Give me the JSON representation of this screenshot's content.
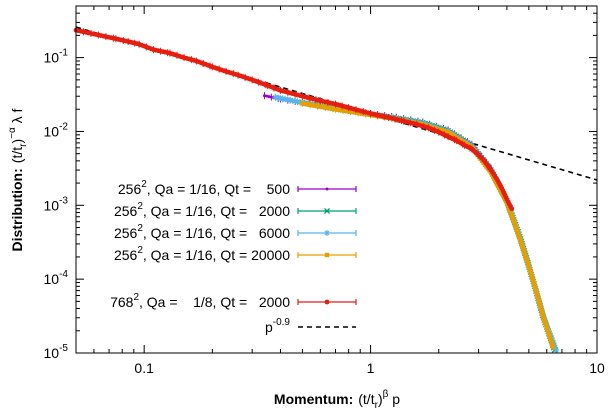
{
  "chart_data": {
    "type": "scatter",
    "title": "",
    "xlabel": {
      "bold": "Momentum:",
      "base": "(t/t",
      "sub": "r",
      "close": ")",
      "sup": "β",
      "tail": " p"
    },
    "ylabel": {
      "bold": "Distribution:",
      "base": "(t/t",
      "sub": "r",
      "close": ")",
      "sup": "−α",
      "tail": " λ f"
    },
    "x_scale": "log",
    "y_scale": "log",
    "xlim": [
      0.05,
      10
    ],
    "ylim": [
      1e-05,
      0.5
    ],
    "x_ticks": [
      {
        "value": 0.1,
        "label": "0.1"
      },
      {
        "value": 1,
        "label": "1"
      },
      {
        "value": 10,
        "label": "10"
      }
    ],
    "y_ticks": [
      {
        "value": 0.1,
        "base": "10",
        "exp": "-1"
      },
      {
        "value": 0.01,
        "base": "10",
        "exp": "-2"
      },
      {
        "value": 0.001,
        "base": "10",
        "exp": "-3"
      },
      {
        "value": 0.0001,
        "base": "10",
        "exp": "-4"
      },
      {
        "value": 1e-05,
        "base": "10",
        "exp": "-5"
      }
    ],
    "grid": false,
    "legend_position": "bottom-left",
    "series": [
      {
        "name": "256^2, Qa = 1/16, Qt = 500",
        "label": {
          "pre": "256",
          "sup": "2",
          "post": ", Qa = 1/16, Qt =    500"
        },
        "color": "#9400d3",
        "marker": "dot",
        "points": [
          [
            0.34,
            0.0305
          ],
          [
            0.4,
            0.0275
          ],
          [
            0.5,
            0.0245
          ],
          [
            0.7,
            0.0205
          ],
          [
            1.0,
            0.0175
          ],
          [
            1.3,
            0.0156
          ],
          [
            1.7,
            0.0134
          ],
          [
            2.2,
            0.0105
          ],
          [
            2.8,
            0.0067
          ],
          [
            3.4,
            0.0032
          ],
          [
            4.0,
            0.00118
          ],
          [
            4.6,
            0.00036
          ],
          [
            5.2,
            0.000105
          ],
          [
            5.8,
            3.1e-05
          ],
          [
            6.4,
            1.2e-05
          ]
        ]
      },
      {
        "name": "256^2, Qa = 1/16, Qt = 2000",
        "label": {
          "pre": "256",
          "sup": "2",
          "post": ", Qa = 1/16, Qt =   2000"
        },
        "color": "#009e73",
        "marker": "x",
        "points": [
          [
            0.5,
            0.0245
          ],
          [
            0.7,
            0.0203
          ],
          [
            1.0,
            0.0172
          ],
          [
            1.3,
            0.0152
          ],
          [
            1.7,
            0.0131
          ],
          [
            2.2,
            0.0102
          ],
          [
            2.8,
            0.0064
          ],
          [
            3.4,
            0.003
          ],
          [
            4.0,
            0.00115
          ],
          [
            4.6,
            0.00035
          ],
          [
            5.2,
            0.0001
          ],
          [
            5.8,
            3e-05
          ],
          [
            6.5,
            1.1e-05
          ]
        ]
      },
      {
        "name": "256^2, Qa = 1/16, Qt = 6000",
        "label": {
          "pre": "256",
          "sup": "2",
          "post": ", Qa = 1/16, Qt =   6000"
        },
        "color": "#56b4e9",
        "marker": "star",
        "points": [
          [
            0.38,
            0.029
          ],
          [
            0.5,
            0.0245
          ],
          [
            0.7,
            0.0202
          ],
          [
            1.0,
            0.017
          ],
          [
            1.3,
            0.015
          ],
          [
            1.7,
            0.0128
          ],
          [
            2.2,
            0.01
          ],
          [
            2.8,
            0.0063
          ],
          [
            3.4,
            0.0029
          ],
          [
            4.0,
            0.00112
          ],
          [
            4.6,
            0.00034
          ],
          [
            5.2,
            0.0001
          ],
          [
            5.8,
            3.1e-05
          ],
          [
            6.6,
            1.1e-05
          ]
        ]
      },
      {
        "name": "256^2, Qa = 1/16, Qt = 20000",
        "label": {
          "pre": "256",
          "sup": "2",
          "post": ", Qa = 1/16, Qt = 20000"
        },
        "color": "#e69f00",
        "marker": "square",
        "points": [
          [
            0.5,
            0.024
          ],
          [
            0.7,
            0.02
          ],
          [
            1.0,
            0.0168
          ],
          [
            1.3,
            0.0147
          ],
          [
            1.7,
            0.0124
          ],
          [
            2.2,
            0.0097
          ],
          [
            2.8,
            0.0061
          ],
          [
            3.4,
            0.0028
          ],
          [
            4.0,
            0.0011
          ],
          [
            4.3,
            0.0006
          ],
          [
            4.6,
            0.00033
          ],
          [
            4.9,
            0.00018
          ],
          [
            5.2,
            0.0001
          ],
          [
            5.5,
            5.5e-05
          ],
          [
            5.8,
            3e-05
          ],
          [
            6.1,
            1.9e-05
          ],
          [
            6.4,
            1.2e-05
          ]
        ]
      },
      {
        "name": "768^2, Qa = 1/8, Qt = 2000",
        "label": {
          "pre": "768",
          "sup": "2",
          "post": ", Qa =    1/8, Qt =   2000"
        },
        "color": "#e51e10",
        "marker": "circle",
        "points": [
          [
            0.05,
            0.235
          ],
          [
            0.075,
            0.18
          ],
          [
            0.085,
            0.165
          ],
          [
            0.095,
            0.152
          ],
          [
            0.11,
            0.128
          ],
          [
            0.13,
            0.115
          ],
          [
            0.15,
            0.1
          ],
          [
            0.17,
            0.09
          ],
          [
            0.2,
            0.075
          ],
          [
            0.23,
            0.065
          ],
          [
            0.26,
            0.058
          ],
          [
            0.3,
            0.05
          ],
          [
            0.35,
            0.042
          ],
          [
            0.4,
            0.036
          ],
          [
            0.5,
            0.03
          ],
          [
            0.6,
            0.026
          ],
          [
            0.7,
            0.0235
          ],
          [
            0.8,
            0.021
          ],
          [
            1.0,
            0.0175
          ],
          [
            1.2,
            0.0155
          ],
          [
            1.4,
            0.0138
          ],
          [
            1.6,
            0.0125
          ],
          [
            1.8,
            0.0112
          ],
          [
            2.0,
            0.0098
          ],
          [
            2.2,
            0.0085
          ],
          [
            2.4,
            0.0075
          ],
          [
            2.6,
            0.0065
          ],
          [
            2.8,
            0.0058
          ],
          [
            3.0,
            0.0048
          ],
          [
            3.2,
            0.0039
          ],
          [
            3.4,
            0.003
          ],
          [
            3.6,
            0.0023
          ],
          [
            3.8,
            0.0017
          ],
          [
            4.0,
            0.0012
          ],
          [
            4.2,
            0.0009
          ]
        ]
      }
    ],
    "reference_line": {
      "name": "p^-0.9",
      "label": {
        "pre": "p",
        "sup": "-0.9"
      },
      "coefficient": 0.0175,
      "exponent": -0.9,
      "color": "#000000",
      "style": "dashed"
    }
  }
}
